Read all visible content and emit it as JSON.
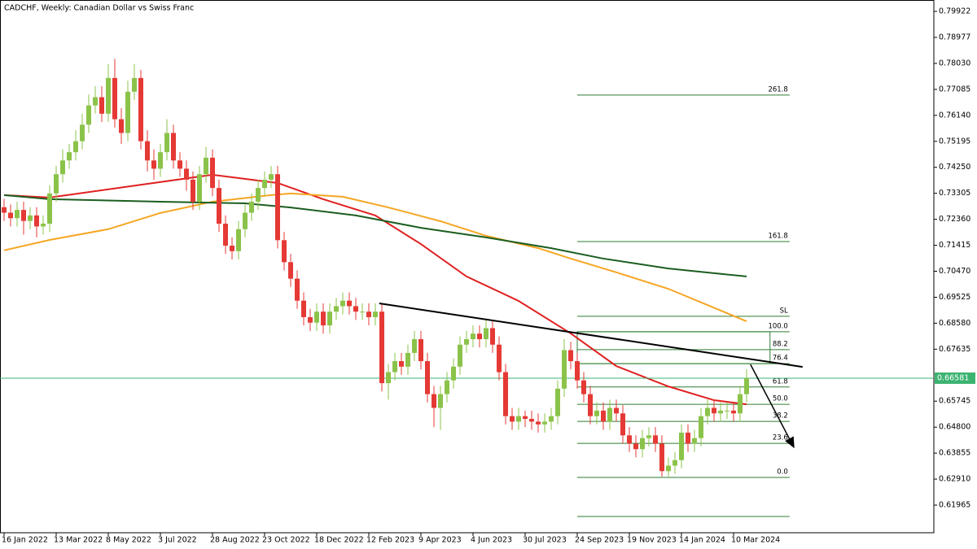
{
  "chart_data": {
    "type": "candlestick",
    "title": "CADCHF, Weekly:  Canadian Dollar vs Swiss Franc",
    "categories": [
      "16 Jan 2022",
      null,
      null,
      null,
      null,
      null,
      null,
      null,
      "13 Mar 2022",
      null,
      null,
      null,
      null,
      null,
      null,
      null,
      "8 May 2022",
      null,
      null,
      null,
      null,
      null,
      null,
      null,
      "3 Jul 2022",
      null,
      null,
      null,
      null,
      null,
      null,
      null,
      "28 Aug 2022",
      null,
      null,
      null,
      null,
      null,
      null,
      null,
      "23 Oct 2022",
      null,
      null,
      null,
      null,
      null,
      null,
      null,
      "18 Dec 2022",
      null,
      null,
      null,
      null,
      null,
      null,
      null,
      "12 Feb 2023",
      null,
      null,
      null,
      null,
      null,
      null,
      null,
      "9 Apr 2023",
      null,
      null,
      null,
      null,
      null,
      null,
      null,
      "4 Jun 2023",
      null,
      null,
      null,
      null,
      null,
      null,
      null,
      "30 Jul 2023",
      null,
      null,
      null,
      null,
      null,
      null,
      null,
      "24 Sep 2023",
      null,
      null,
      null,
      null,
      null,
      null,
      null,
      "19 Nov 2023",
      null,
      null,
      null,
      null,
      null,
      null,
      null,
      "14 Jan 2024",
      null,
      null,
      null,
      null,
      null,
      null,
      null,
      "10 Mar 2024",
      null,
      null
    ],
    "ohlc": [
      [
        0.728,
        0.731,
        0.723,
        0.726
      ],
      [
        0.726,
        0.729,
        0.721,
        0.724
      ],
      [
        0.724,
        0.73,
        0.721,
        0.727
      ],
      [
        0.727,
        0.73,
        0.718,
        0.723
      ],
      [
        0.723,
        0.728,
        0.72,
        0.725
      ],
      [
        0.725,
        0.728,
        0.717,
        0.721
      ],
      [
        0.721,
        0.725,
        0.718,
        0.722
      ],
      [
        0.722,
        0.736,
        0.719,
        0.733
      ],
      [
        0.733,
        0.743,
        0.73,
        0.74
      ],
      [
        0.74,
        0.749,
        0.737,
        0.745
      ],
      [
        0.745,
        0.751,
        0.742,
        0.748
      ],
      [
        0.748,
        0.756,
        0.745,
        0.752
      ],
      [
        0.752,
        0.762,
        0.749,
        0.758
      ],
      [
        0.758,
        0.769,
        0.755,
        0.765
      ],
      [
        0.765,
        0.772,
        0.762,
        0.768
      ],
      [
        0.768,
        0.772,
        0.759,
        0.762
      ],
      [
        0.762,
        0.78,
        0.759,
        0.775
      ],
      [
        0.775,
        0.782,
        0.757,
        0.76
      ],
      [
        0.76,
        0.764,
        0.751,
        0.755
      ],
      [
        0.755,
        0.774,
        0.752,
        0.77
      ],
      [
        0.77,
        0.78,
        0.767,
        0.775
      ],
      [
        0.775,
        0.778,
        0.749,
        0.752
      ],
      [
        0.752,
        0.756,
        0.741,
        0.745
      ],
      [
        0.745,
        0.749,
        0.738,
        0.742
      ],
      [
        0.742,
        0.751,
        0.739,
        0.748
      ],
      [
        0.748,
        0.76,
        0.745,
        0.755
      ],
      [
        0.755,
        0.758,
        0.742,
        0.745
      ],
      [
        0.745,
        0.748,
        0.739,
        0.742
      ],
      [
        0.742,
        0.745,
        0.734,
        0.738
      ],
      [
        0.738,
        0.741,
        0.727,
        0.73
      ],
      [
        0.73,
        0.743,
        0.727,
        0.74
      ],
      [
        0.74,
        0.75,
        0.737,
        0.746
      ],
      [
        0.746,
        0.749,
        0.732,
        0.735
      ],
      [
        0.735,
        0.738,
        0.719,
        0.722
      ],
      [
        0.722,
        0.725,
        0.711,
        0.714
      ],
      [
        0.714,
        0.717,
        0.709,
        0.712
      ],
      [
        0.712,
        0.723,
        0.709,
        0.72
      ],
      [
        0.72,
        0.729,
        0.717,
        0.726
      ],
      [
        0.726,
        0.733,
        0.723,
        0.73
      ],
      [
        0.73,
        0.738,
        0.727,
        0.735
      ],
      [
        0.735,
        0.741,
        0.732,
        0.738
      ],
      [
        0.738,
        0.743,
        0.735,
        0.74
      ],
      [
        0.74,
        0.743,
        0.713,
        0.716
      ],
      [
        0.716,
        0.719,
        0.705,
        0.708
      ],
      [
        0.708,
        0.711,
        0.699,
        0.702
      ],
      [
        0.702,
        0.705,
        0.691,
        0.694
      ],
      [
        0.694,
        0.697,
        0.685,
        0.688
      ],
      [
        0.688,
        0.691,
        0.683,
        0.686
      ],
      [
        0.686,
        0.693,
        0.683,
        0.69
      ],
      [
        0.69,
        0.693,
        0.682,
        0.685
      ],
      [
        0.685,
        0.693,
        0.682,
        0.69
      ],
      [
        0.69,
        0.695,
        0.687,
        0.692
      ],
      [
        0.692,
        0.697,
        0.689,
        0.694
      ],
      [
        0.694,
        0.697,
        0.689,
        0.692
      ],
      [
        0.692,
        0.695,
        0.687,
        0.69
      ],
      [
        0.69,
        0.693,
        0.687,
        0.69
      ],
      [
        0.69,
        0.693,
        0.685,
        0.688
      ],
      [
        0.688,
        0.693,
        0.685,
        0.69
      ],
      [
        0.69,
        0.693,
        0.661,
        0.664
      ],
      [
        0.664,
        0.671,
        0.658,
        0.668
      ],
      [
        0.668,
        0.675,
        0.665,
        0.672
      ],
      [
        0.672,
        0.675,
        0.667,
        0.67
      ],
      [
        0.67,
        0.678,
        0.667,
        0.675
      ],
      [
        0.675,
        0.683,
        0.672,
        0.68
      ],
      [
        0.68,
        0.683,
        0.669,
        0.672
      ],
      [
        0.672,
        0.675,
        0.657,
        0.66
      ],
      [
        0.66,
        0.663,
        0.648,
        0.655
      ],
      [
        0.655,
        0.663,
        0.647,
        0.66
      ],
      [
        0.66,
        0.668,
        0.657,
        0.665
      ],
      [
        0.665,
        0.673,
        0.662,
        0.67
      ],
      [
        0.67,
        0.681,
        0.667,
        0.678
      ],
      [
        0.678,
        0.683,
        0.675,
        0.68
      ],
      [
        0.68,
        0.685,
        0.677,
        0.682
      ],
      [
        0.682,
        0.685,
        0.677,
        0.68
      ],
      [
        0.68,
        0.687,
        0.677,
        0.684
      ],
      [
        0.684,
        0.687,
        0.675,
        0.678
      ],
      [
        0.678,
        0.681,
        0.665,
        0.668
      ],
      [
        0.668,
        0.671,
        0.649,
        0.652
      ],
      [
        0.652,
        0.655,
        0.647,
        0.65
      ],
      [
        0.65,
        0.655,
        0.647,
        0.652
      ],
      [
        0.652,
        0.654,
        0.648,
        0.651
      ],
      [
        0.651,
        0.654,
        0.647,
        0.65
      ],
      [
        0.65,
        0.653,
        0.646,
        0.649
      ],
      [
        0.649,
        0.653,
        0.646,
        0.65
      ],
      [
        0.65,
        0.655,
        0.647,
        0.652
      ],
      [
        0.652,
        0.665,
        0.649,
        0.662
      ],
      [
        0.662,
        0.68,
        0.659,
        0.676
      ],
      [
        0.676,
        0.679,
        0.669,
        0.672
      ],
      [
        0.672,
        0.675,
        0.662,
        0.665
      ],
      [
        0.665,
        0.668,
        0.657,
        0.66
      ],
      [
        0.66,
        0.663,
        0.649,
        0.652
      ],
      [
        0.652,
        0.657,
        0.649,
        0.654
      ],
      [
        0.654,
        0.657,
        0.647,
        0.65
      ],
      [
        0.65,
        0.658,
        0.647,
        0.655
      ],
      [
        0.655,
        0.658,
        0.65,
        0.653
      ],
      [
        0.653,
        0.656,
        0.642,
        0.645
      ],
      [
        0.645,
        0.648,
        0.639,
        0.642
      ],
      [
        0.642,
        0.645,
        0.637,
        0.64
      ],
      [
        0.64,
        0.647,
        0.637,
        0.644
      ],
      [
        0.644,
        0.648,
        0.641,
        0.645
      ],
      [
        0.645,
        0.648,
        0.639,
        0.642
      ],
      [
        0.642,
        0.645,
        0.63,
        0.632
      ],
      [
        0.632,
        0.637,
        0.63,
        0.634
      ],
      [
        0.634,
        0.639,
        0.631,
        0.636
      ],
      [
        0.636,
        0.649,
        0.633,
        0.646
      ],
      [
        0.646,
        0.649,
        0.639,
        0.642
      ],
      [
        0.642,
        0.647,
        0.639,
        0.644
      ],
      [
        0.644,
        0.655,
        0.641,
        0.652
      ],
      [
        0.652,
        0.658,
        0.649,
        0.655
      ],
      [
        0.655,
        0.658,
        0.65,
        0.653
      ],
      [
        0.653,
        0.657,
        0.65,
        0.654
      ],
      [
        0.654,
        0.657,
        0.651,
        0.654
      ],
      [
        0.654,
        0.657,
        0.65,
        0.653
      ],
      [
        0.653,
        0.663,
        0.65,
        0.66
      ],
      [
        0.66,
        0.669,
        0.657,
        0.6658
      ]
    ],
    "up_color": "#8bc34a",
    "down_color": "#e53935",
    "ylim": [
      0.60959,
      0.80336
    ],
    "yticks": [
      0.79922,
      0.78977,
      {
        "value": 0.7803,
        "label": "0.78030"
      },
      0.77085,
      {
        "value": 0.7614,
        "label": "0.76140"
      },
      0.75195,
      {
        "value": 0.7425,
        "label": "0.74250"
      },
      0.73305,
      {
        "value": 0.7236,
        "label": "0.72360"
      },
      0.71415,
      {
        "value": 0.7047,
        "label": "0.70470"
      },
      0.69525,
      {
        "value": 0.6858,
        "label": "0.68580"
      },
      0.67635,
      0.65745,
      {
        "value": 0.648,
        "label": "0.64800"
      },
      0.63855,
      {
        "value": 0.6291,
        "label": "0.62910"
      },
      0.61965
    ],
    "current_price": 0.66581,
    "current_price_color": "#3cb371",
    "moving_averages": [
      {
        "color": "#e02020",
        "x": [
          0,
          7,
          32,
          42,
          49,
          57,
          64,
          71,
          79,
          87,
          94,
          102,
          109,
          114
        ],
        "values": [
          0.7324,
          0.7315,
          0.7398,
          0.7368,
          0.7309,
          0.725,
          0.7146,
          0.7028,
          0.6939,
          0.6821,
          0.6702,
          0.6628,
          0.6578,
          0.6563
        ]
      },
      {
        "color": "#f5a623",
        "x": [
          0,
          7,
          16,
          24,
          32,
          41,
          44,
          52,
          59,
          67,
          74,
          82,
          87,
          94,
          102,
          108,
          114
        ],
        "values": [
          0.7123,
          0.7161,
          0.72,
          0.7259,
          0.73,
          0.7324,
          0.733,
          0.7318,
          0.7279,
          0.7229,
          0.7176,
          0.7131,
          0.7093,
          0.7043,
          0.6983,
          0.6924,
          0.6865
        ]
      },
      {
        "color": "#1b5e20",
        "x": [
          0,
          7,
          24,
          37,
          44,
          54,
          64,
          74,
          84,
          92,
          102,
          109,
          114
        ],
        "values": [
          0.7324,
          0.7309,
          0.73,
          0.7294,
          0.7279,
          0.725,
          0.7205,
          0.717,
          0.7131,
          0.7093,
          0.7057,
          0.704,
          0.7028
        ]
      }
    ],
    "fibonacci": {
      "color": "#2e7d32",
      "x": [
        88,
        120.6
      ],
      "box_x": [
        88,
        117.6
      ],
      "levels": [
        {
          "label": "261.8",
          "value": 0.7688
        },
        {
          "label": "161.8",
          "value": 0.7155
        },
        {
          "label": "SL",
          "value": 0.6883
        },
        {
          "label": "100.0",
          "value": 0.6827
        },
        {
          "label": "88.2",
          "value": 0.6762
        },
        {
          "label": "76.4",
          "value": 0.6711
        },
        {
          "label": "61.8",
          "value": 0.6626
        },
        {
          "label": "50.0",
          "value": 0.6563
        },
        {
          "label": "38.2",
          "value": 0.6501
        },
        {
          "label": "23.6",
          "value": 0.6421
        },
        {
          "label": "0.0",
          "value": 0.6297
        },
        {
          "label": null,
          "value": 0.6155
        }
      ]
    },
    "trendline": {
      "color": "#000000",
      "x": [
        57.6,
        122.6
      ],
      "values": [
        0.693,
        0.6699
      ]
    },
    "arrow": {
      "color": "#000000",
      "x": [
        114.6,
        121.25
      ],
      "values": [
        0.6708,
        0.6407
      ]
    }
  }
}
